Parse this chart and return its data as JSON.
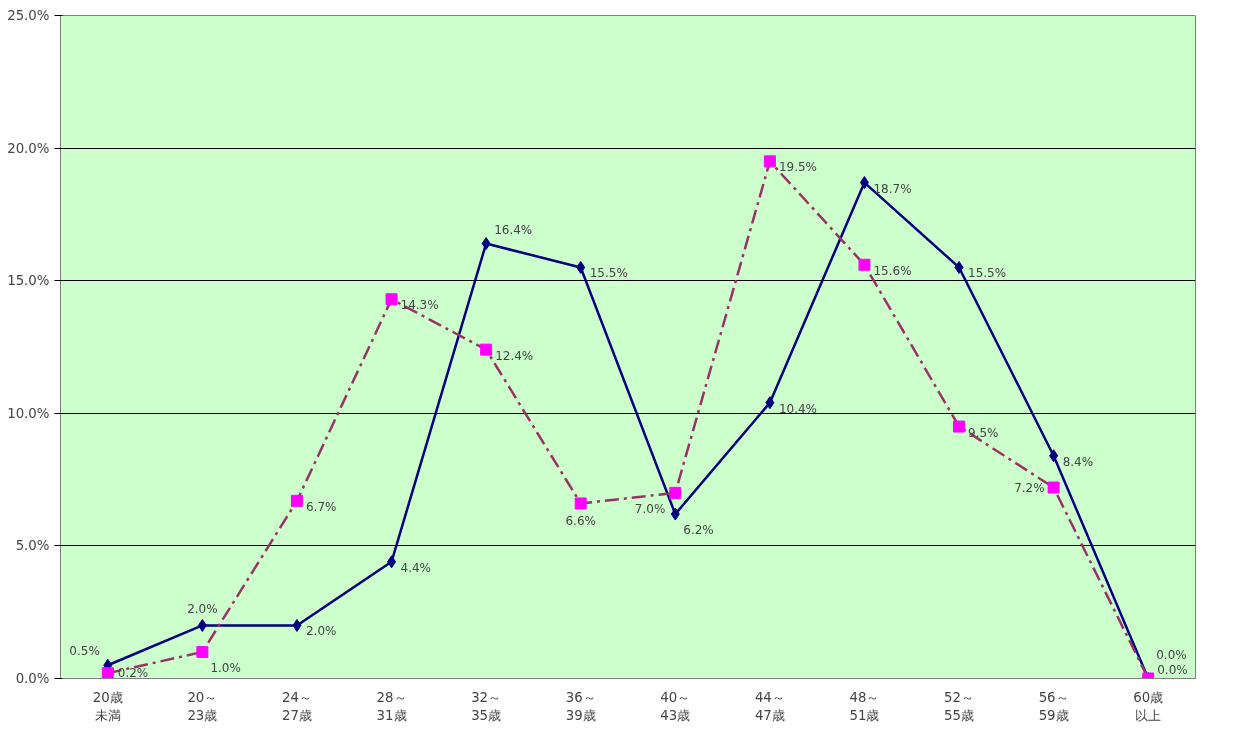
{
  "chart_data": {
    "type": "line",
    "categories": [
      "20歳未満",
      "20～23歳",
      "24～27歳",
      "28～31歳",
      "32～35歳",
      "36～39歳",
      "40～43歳",
      "44～47歳",
      "48～51歳",
      "52～55歳",
      "56～59歳",
      "60歳以上"
    ],
    "series": [
      {
        "color": "#000080",
        "marker": "diamond",
        "line_style": "solid",
        "values": [
          0.5,
          2.0,
          2.0,
          4.4,
          16.4,
          15.5,
          6.2,
          10.4,
          18.7,
          15.5,
          8.4,
          0.0
        ],
        "value_labels": [
          "0.5%",
          "2.0%",
          "2.0%",
          "4.4%",
          "16.4%",
          "15.5%",
          "6.2%",
          "10.4%",
          "18.7%",
          "15.5%",
          "8.4%",
          "0.0%"
        ]
      },
      {
        "color": "#993366",
        "colors": [
          "#ff00ff",
          "#ff00ff",
          "#ff00ff",
          "#ff00ff",
          "#ff00ff",
          "#ff00ff",
          "#ff00ff",
          "#ff00ff",
          "#ff00ff",
          "#ff00ff",
          "#ff00ff",
          "#ff00ff"
        ],
        "marker": "square",
        "line_style": "dashed",
        "values": [
          0.2,
          1.0,
          6.7,
          14.3,
          12.4,
          6.6,
          7.0,
          19.5,
          15.6,
          9.5,
          7.2,
          0.0
        ],
        "value_labels": [
          "0.2%",
          "1.0%",
          "6.7%",
          "14.3%",
          "12.4%",
          "6.6%",
          "7.0%",
          "19.5%",
          "15.6%",
          "9.5%",
          "7.2%",
          "0.0%"
        ]
      }
    ],
    "ylim": [
      0,
      25
    ],
    "yticks": [
      {
        "value": 0,
        "label": "0.0%"
      },
      {
        "value": 5,
        "label": "5.0%"
      },
      {
        "value": 10,
        "label": "10.0%"
      },
      {
        "value": 15,
        "label": "15.0%"
      },
      {
        "value": 20,
        "label": "20.0%"
      },
      {
        "value": 25,
        "label": "25.0%"
      }
    ],
    "grid": "y"
  }
}
